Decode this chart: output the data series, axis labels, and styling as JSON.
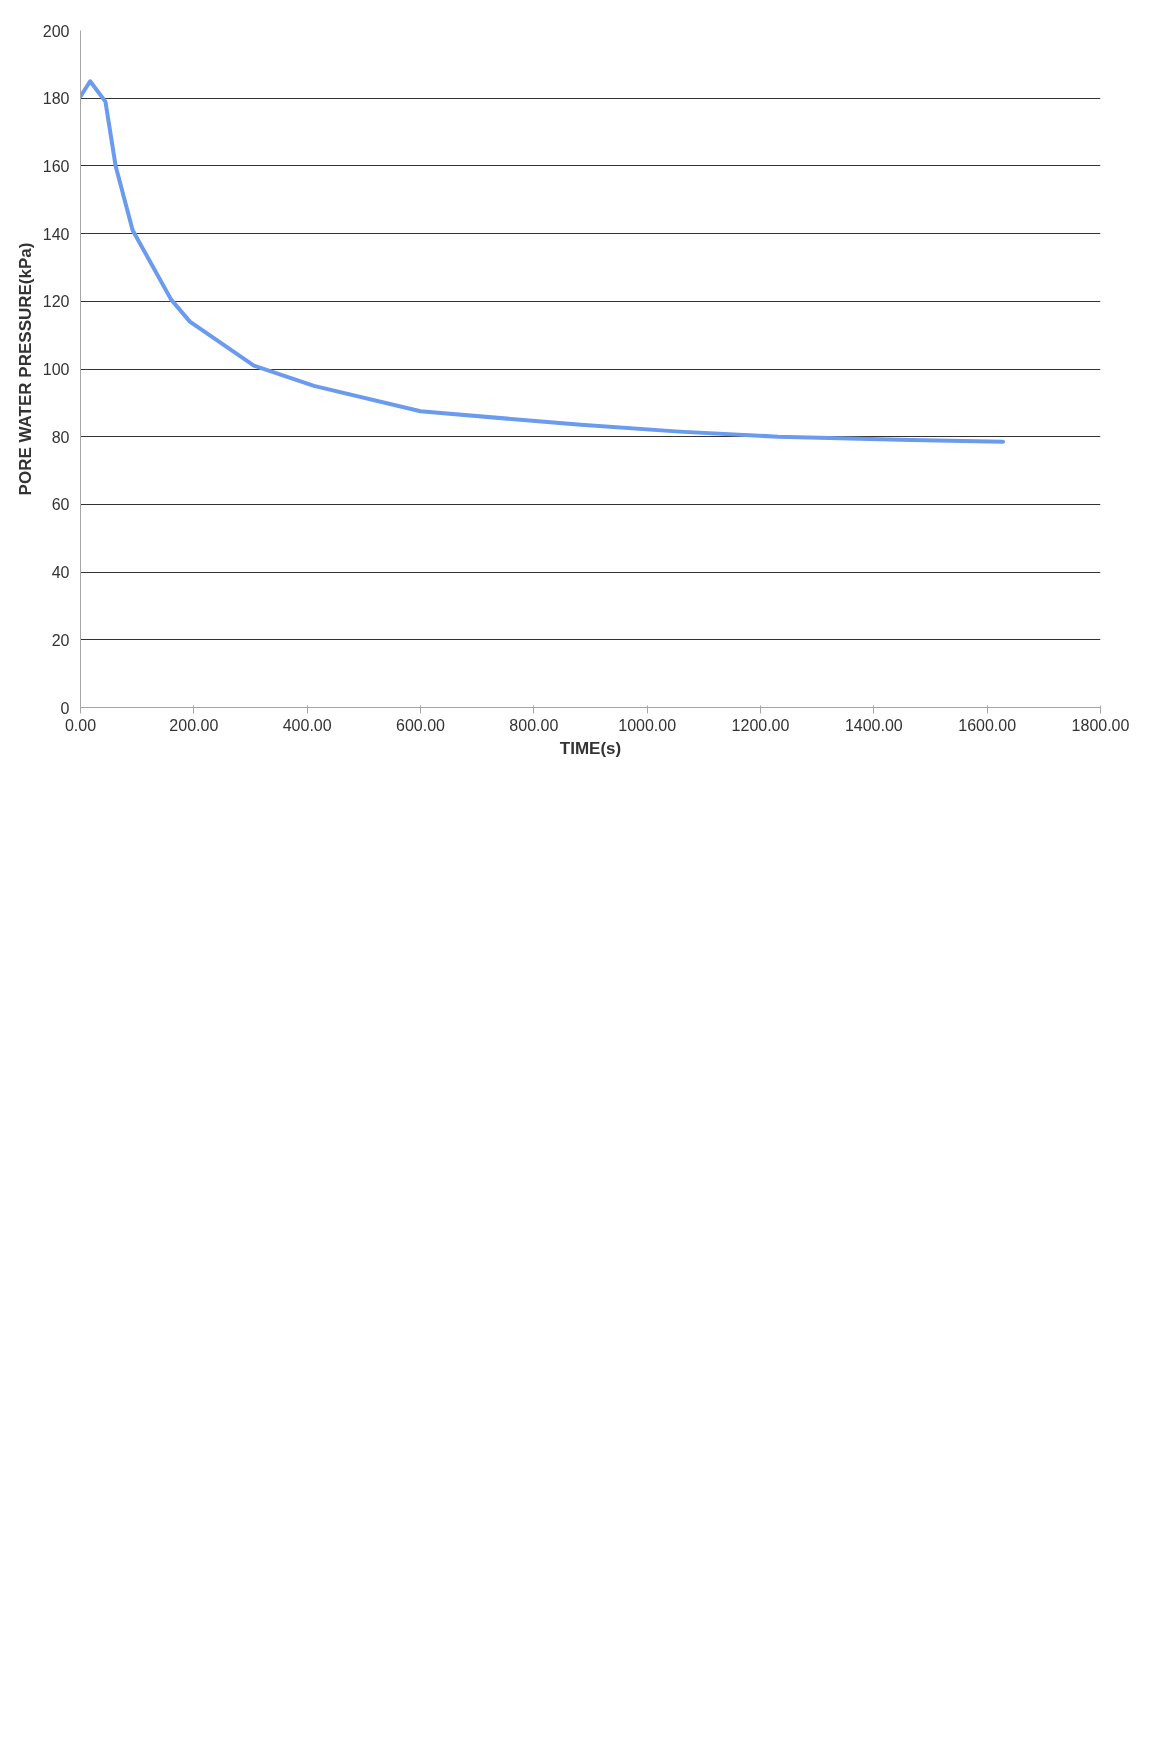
{
  "chart_data": {
    "type": "line",
    "xlabel": "TIME(s)",
    "ylabel": "PORE WATER PRESSURE(kPa)",
    "xlim": [
      0,
      1800
    ],
    "xticks": [
      {
        "value": 0,
        "label": "0.00"
      },
      {
        "value": 200,
        "label": "200.00"
      },
      {
        "value": 400,
        "label": "400.00"
      },
      {
        "value": 600,
        "label": "600.00"
      },
      {
        "value": 800,
        "label": "800.00"
      },
      {
        "value": 1000,
        "label": "1000.00"
      },
      {
        "value": 1200,
        "label": "1200.00"
      },
      {
        "value": 1400,
        "label": "1400.00"
      },
      {
        "value": 1600,
        "label": "1600.00"
      },
      {
        "value": 1800,
        "label": "1800.00"
      }
    ],
    "ylim": [
      0,
      200
    ],
    "yticks": [
      0,
      20,
      40,
      60,
      80,
      100,
      120,
      140,
      160,
      180,
      200
    ],
    "grid": "y",
    "marker": "none",
    "line_style": "solid",
    "series": [
      {
        "color": "#6a9bef",
        "x": [
          0,
          17,
          44,
          62,
          92,
          160,
          193,
          306,
          412,
          600,
          883,
          1057,
          1231,
          1465,
          1628
        ],
        "values": [
          180.5,
          185,
          179,
          160,
          141,
          120.5,
          114,
          101,
          95,
          87.5,
          83.5,
          81.5,
          80,
          79,
          78.5
        ]
      }
    ]
  }
}
